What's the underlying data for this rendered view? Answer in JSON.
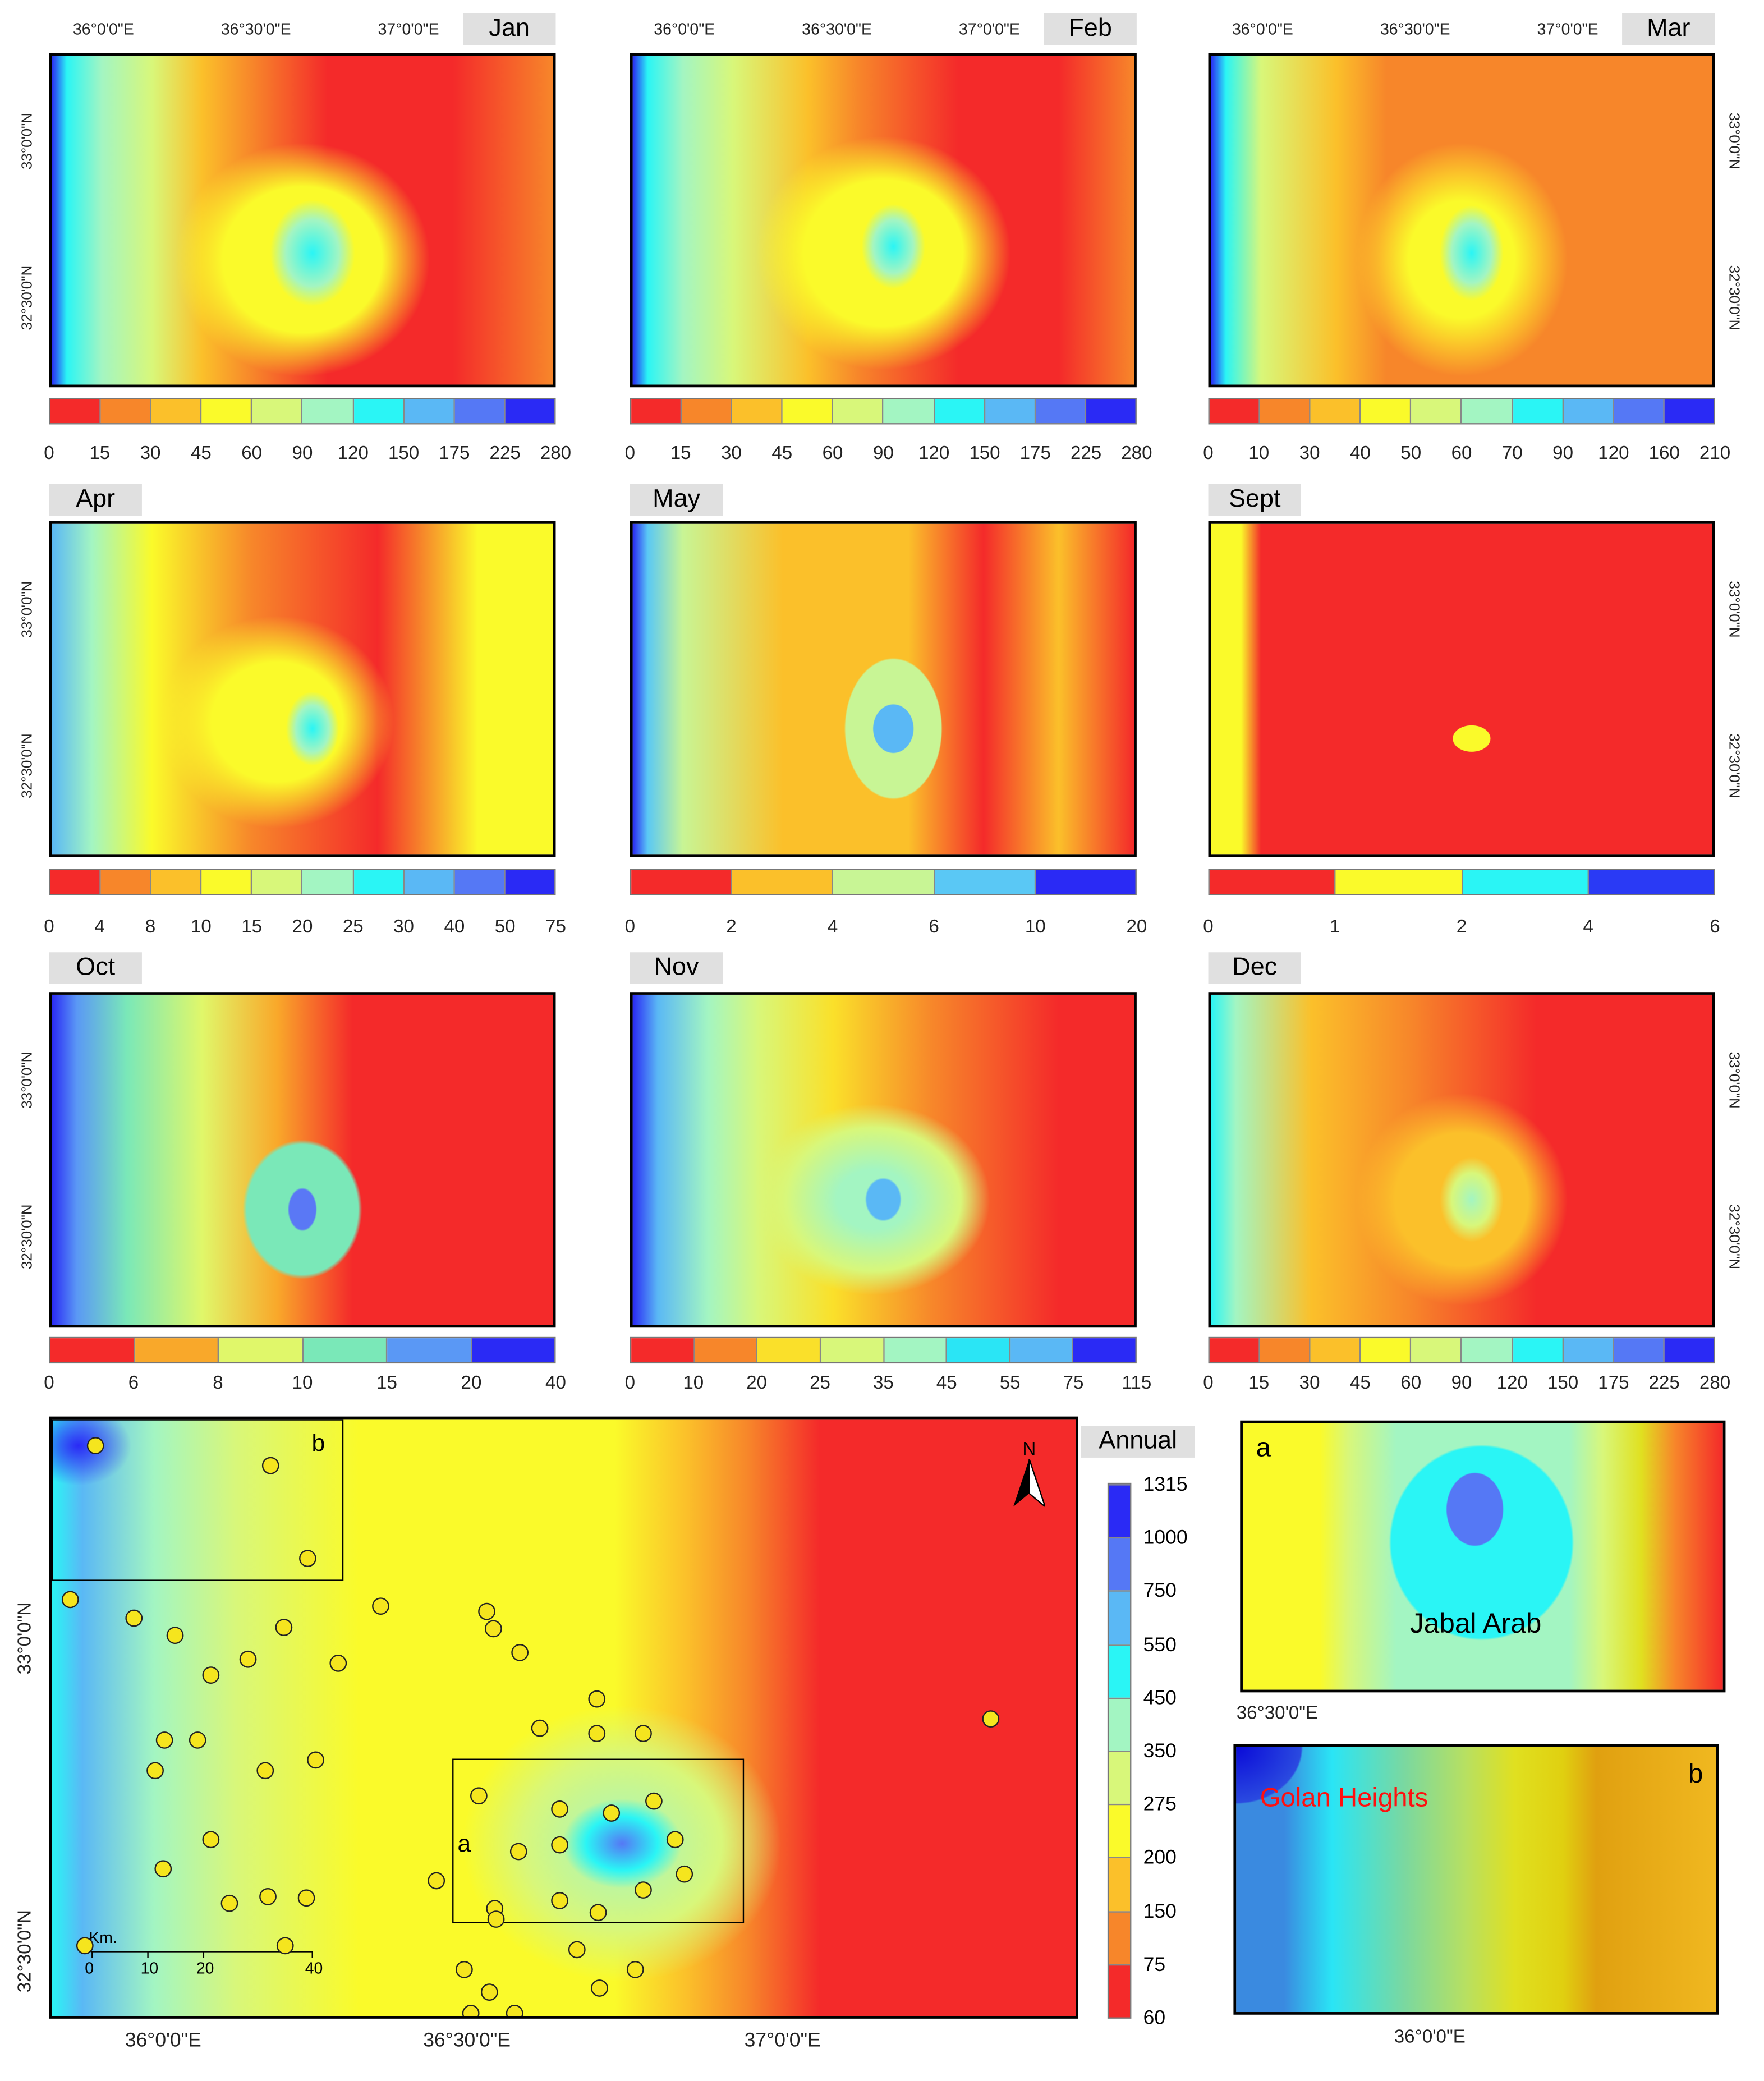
{
  "colors10": [
    "#f42a2a",
    "#f7862a",
    "#fbc02a",
    "#fafa2a",
    "#d8f77a",
    "#a3f5c2",
    "#2af5f5",
    "#5ab8f5",
    "#5578f5",
    "#2a2af5"
  ],
  "longitude_labels": [
    "36°0'0\"E",
    "36°30'0\"E",
    "37°0'0\"E"
  ],
  "latitude_labels": [
    "33°0'0\"N",
    "32°30'0\"N"
  ],
  "monthly_panels": [
    {
      "month": "Jan",
      "breaks": [
        "0",
        "15",
        "30",
        "45",
        "60",
        "90",
        "120",
        "150",
        "175",
        "225",
        "280"
      ],
      "colors": [
        "#f42a2a",
        "#f7862a",
        "#fbc02a",
        "#fafa2a",
        "#d8f77a",
        "#a3f5c2",
        "#2af5f5",
        "#5ab8f5",
        "#5578f5",
        "#2a2af5"
      ]
    },
    {
      "month": "Feb",
      "breaks": [
        "0",
        "15",
        "30",
        "45",
        "60",
        "90",
        "120",
        "150",
        "175",
        "225",
        "280"
      ],
      "colors": [
        "#f42a2a",
        "#f7862a",
        "#fbc02a",
        "#fafa2a",
        "#d8f77a",
        "#a3f5c2",
        "#2af5f5",
        "#5ab8f5",
        "#5578f5",
        "#2a2af5"
      ]
    },
    {
      "month": "Mar",
      "breaks": [
        "0",
        "10",
        "30",
        "40",
        "50",
        "60",
        "70",
        "90",
        "120",
        "160",
        "210"
      ],
      "colors": [
        "#f42a2a",
        "#f7862a",
        "#fbc02a",
        "#fafa2a",
        "#d8f77a",
        "#a3f5c2",
        "#2af5f5",
        "#5ab8f5",
        "#5578f5",
        "#2a2af5"
      ]
    },
    {
      "month": "Apr",
      "breaks": [
        "0",
        "4",
        "8",
        "10",
        "15",
        "20",
        "25",
        "30",
        "40",
        "50",
        "75"
      ],
      "colors": [
        "#f42a2a",
        "#f7862a",
        "#fbc02a",
        "#fafa2a",
        "#d8f77a",
        "#a3f5c2",
        "#2af5f5",
        "#5ab8f5",
        "#5578f5",
        "#2a2af5"
      ]
    },
    {
      "month": "May",
      "breaks": [
        "0",
        "2",
        "4",
        "6",
        "10",
        "20"
      ],
      "colors": [
        "#f42a2a",
        "#fbc02a",
        "#c8f595",
        "#5ac8f5",
        "#2a2af5"
      ]
    },
    {
      "month": "Sept",
      "breaks": [
        "0",
        "1",
        "2",
        "4",
        "6"
      ],
      "colors": [
        "#f42a2a",
        "#fafa2a",
        "#2af5f5",
        "#2a3af5"
      ]
    },
    {
      "month": "Oct",
      "breaks": [
        "0",
        "6",
        "8",
        "10",
        "15",
        "20",
        "40"
      ],
      "colors": [
        "#f42a2a",
        "#f9a82a",
        "#e0f76a",
        "#7ae8b8",
        "#5a98f5",
        "#2a2af5"
      ]
    },
    {
      "month": "Nov",
      "breaks": [
        "0",
        "10",
        "20",
        "25",
        "35",
        "45",
        "55",
        "75",
        "115"
      ],
      "colors": [
        "#f42a2a",
        "#f7862a",
        "#fae02a",
        "#d8f77a",
        "#a3f5c2",
        "#2ae5f5",
        "#5ab8f5",
        "#2a2af5"
      ]
    },
    {
      "month": "Dec",
      "breaks": [
        "0",
        "15",
        "30",
        "45",
        "60",
        "90",
        "120",
        "150",
        "175",
        "225",
        "280"
      ],
      "colors": [
        "#f42a2a",
        "#f7862a",
        "#fbc02a",
        "#fafa2a",
        "#d8f77a",
        "#a3f5c2",
        "#2af5f5",
        "#5ab8f5",
        "#5578f5",
        "#2a2af5"
      ]
    }
  ],
  "annual": {
    "title": "Annual",
    "breaks": [
      "60",
      "75",
      "150",
      "200",
      "275",
      "350",
      "450",
      "550",
      "750",
      "1000",
      "1315"
    ],
    "colors": [
      "#f42a2a",
      "#f7862a",
      "#fbc02a",
      "#fafa2a",
      "#d8f77a",
      "#a3f5c2",
      "#2af5f5",
      "#5ab8f5",
      "#5578f5",
      "#2a2af5"
    ],
    "north_label": "N",
    "scale_unit": "Km.",
    "scale_ticks": [
      "0",
      "10",
      "20",
      "40"
    ],
    "lon_labels": [
      "36°0'0\"E",
      "36°30'0\"E",
      "37°0'0\"E"
    ],
    "lat_labels": [
      "33°0'0\"N",
      "32°30'0\"N"
    ],
    "box_a_label": "a",
    "box_b_label": "b"
  },
  "inset_a": {
    "label": "a",
    "place": "Jabal Arab",
    "lon_label": "36°30'0\"E"
  },
  "inset_b": {
    "label": "b",
    "place": "Golan Heights",
    "place_color": "#ff1010",
    "lon_label": "36°0'0\"E"
  }
}
